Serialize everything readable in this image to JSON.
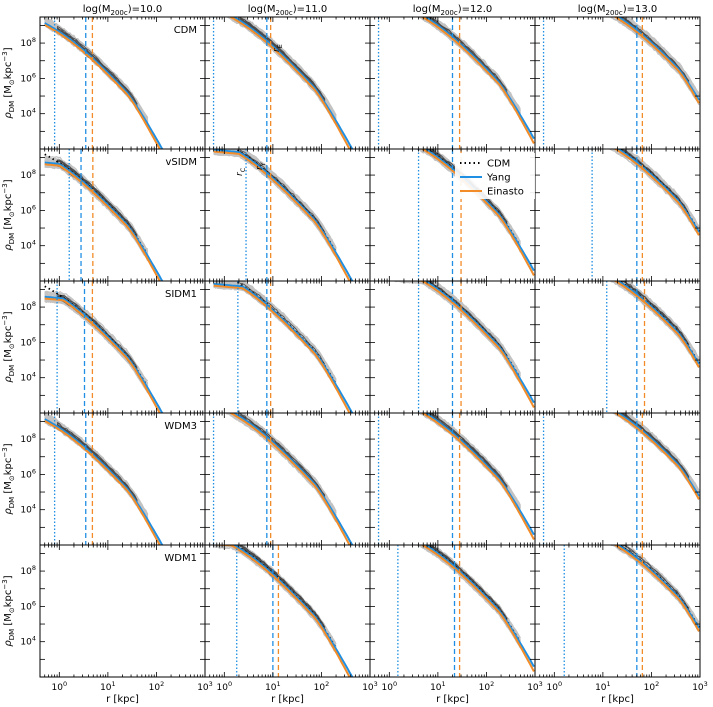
{
  "chart_data": {
    "type": "line",
    "column_titles": [
      "log(M",
      "200c",
      ")=10.0",
      "log(M",
      "200c",
      ")=11.0",
      "log(M",
      "200c",
      ")=12.0",
      "log(M",
      "200c",
      ")=13.0"
    ],
    "columns": [
      {
        "pre": "log(M",
        "sub": "200c",
        "post": ")=10.0"
      },
      {
        "pre": "log(M",
        "sub": "200c",
        "post": ")=11.0"
      },
      {
        "pre": "log(M",
        "sub": "200c",
        "post": ")=12.0"
      },
      {
        "pre": "log(M",
        "sub": "200c",
        "post": ")=13.0"
      }
    ],
    "rows": [
      "CDM",
      "vSIDM",
      "SIDM1",
      "WDM3",
      "WDM1"
    ],
    "ylabel": {
      "main": "ρ",
      "sub": "DM",
      "units": " [M",
      "sun_sub": "⊙",
      "post": "kpc",
      "exp": "−3",
      "close": "]"
    },
    "xlabel": "r [kpc]",
    "x_scale": "log",
    "y_scale": "log",
    "xlim": [
      0.4,
      1000
    ],
    "ylim": [
      100,
      3000000000
    ],
    "x_ticks": [
      {
        "base": "10",
        "exp": "0"
      },
      {
        "base": "10",
        "exp": "1"
      },
      {
        "base": "10",
        "exp": "2"
      },
      {
        "base": "10",
        "exp": "3"
      }
    ],
    "y_ticks": [
      {
        "value": 10000,
        "base": "10",
        "exp": "4"
      },
      {
        "value": 1000000,
        "base": "10",
        "exp": "6"
      },
      {
        "value": 100000000,
        "base": "10",
        "exp": "8"
      }
    ],
    "annotations": {
      "r_E": {
        "main": "r",
        "sub": "E"
      },
      "r_C": {
        "main": "r",
        "sub": "C"
      },
      "r_Y": {
        "main": "r",
        "sub": "Y"
      }
    },
    "legend": {
      "placement": "upper-right of row 2 column 3",
      "entries": [
        {
          "label": "CDM",
          "style": "dotted",
          "color": "#000000"
        },
        {
          "label": "Yang",
          "style": "solid",
          "color": "#1f8fe3"
        },
        {
          "label": "Einasto",
          "style": "solid",
          "color": "#f28c28"
        }
      ]
    },
    "colors": {
      "yang": "#1f8fe3",
      "einasto": "#f28c28",
      "cdm": "#000000",
      "light_profiles": "#c3c3c3",
      "dark_profiles": "#4a4a4a"
    },
    "radii": {
      "row0": [
        {
          "yang_dotted": 0.8,
          "yang_dashed": 3.5,
          "einasto_dashed": 4.8
        },
        {
          "yang_dotted": 0.6,
          "yang_dashed": 7.5,
          "einasto_dashed": 9
        },
        {
          "yang_dotted": 0.6,
          "yang_dashed": 20,
          "einasto_dashed": 28
        },
        {
          "yang_dotted": 0.6,
          "yang_dashed": 50,
          "einasto_dashed": 65
        }
      ],
      "row1": [
        {
          "yang_dotted": 1.6,
          "yang_dashed": 2.8,
          "einasto_dashed": 4.9
        },
        {
          "yang_dotted": 2.8,
          "yang_dashed": 7.5,
          "einasto_dashed": 9
        },
        {
          "yang_dotted": 4.0,
          "yang_dashed": 20,
          "einasto_dashed": 30
        },
        {
          "yang_dotted": 6.0,
          "yang_dashed": 50,
          "einasto_dashed": 65
        }
      ],
      "row2": [
        {
          "yang_dotted": 0.9,
          "yang_dashed": 3.3,
          "einasto_dashed": 4.8
        },
        {
          "yang_dotted": 1.9,
          "yang_dashed": 7.5,
          "einasto_dashed": 9
        },
        {
          "yang_dotted": 4.0,
          "yang_dashed": 20,
          "einasto_dashed": 30
        },
        {
          "yang_dotted": 12,
          "yang_dashed": 50,
          "einasto_dashed": 72
        }
      ],
      "row3": [
        {
          "yang_dotted": 0.8,
          "yang_dashed": 3.5,
          "einasto_dashed": 4.8
        },
        {
          "yang_dotted": 0.6,
          "yang_dashed": 7.5,
          "einasto_dashed": 9
        },
        {
          "yang_dotted": 0.6,
          "yang_dashed": 20,
          "einasto_dashed": 28
        },
        {
          "yang_dotted": 0.6,
          "yang_dashed": 50,
          "einasto_dashed": 65
        }
      ],
      "row4": [
        {
          "yang_dotted": null,
          "yang_dashed": null,
          "einasto_dashed": null
        },
        {
          "yang_dotted": 1.8,
          "yang_dashed": 10,
          "einasto_dashed": 13
        },
        {
          "yang_dotted": 1.5,
          "yang_dashed": 22,
          "einasto_dashed": 28
        },
        {
          "yang_dotted": 1.6,
          "yang_dashed": 50,
          "einasto_dashed": 65
        }
      ]
    }
  }
}
